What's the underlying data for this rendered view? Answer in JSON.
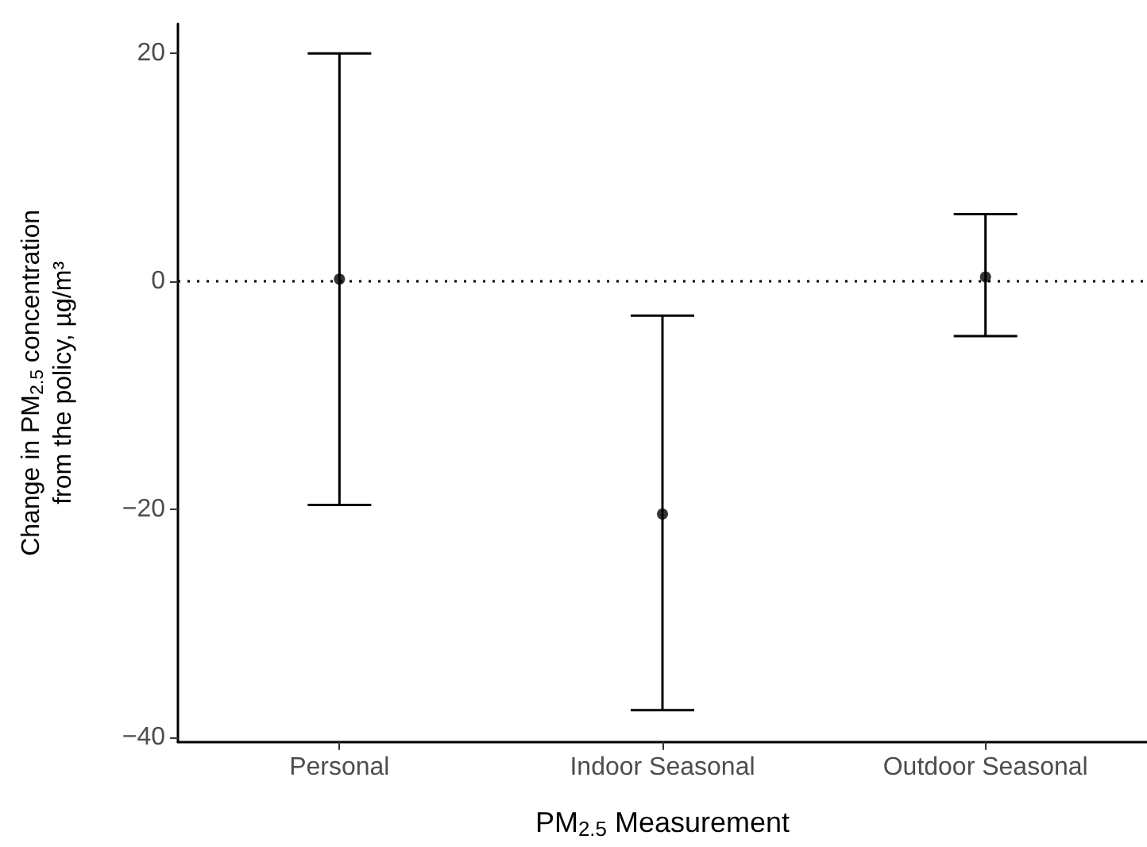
{
  "chart_data": {
    "type": "scatter",
    "xlabel": "PM$_{2.5}$ Measurement",
    "ylabel": "Change in PM$_{2.5}$ concentration\nfrom the policy, µg/m³",
    "categories": [
      "Personal",
      "Indoor Seasonal",
      "Outdoor Seasonal"
    ],
    "series": [
      {
        "color": "#000000",
        "values": [
          0.2,
          -20.4,
          0.4
        ],
        "errors": [
          [
            -19.6,
            20
          ],
          [
            -37.6,
            -3.0
          ],
          [
            -4.8,
            5.9
          ]
        ]
      }
    ],
    "ylim": [
      -40.4,
      22.6
    ],
    "yticks": [
      -40,
      -20,
      0,
      20
    ],
    "ref_lines": [
      {
        "axis": "y",
        "value": 0,
        "line_style": "dotted",
        "color": "#000000"
      }
    ],
    "grid": false,
    "marker": "circle"
  }
}
